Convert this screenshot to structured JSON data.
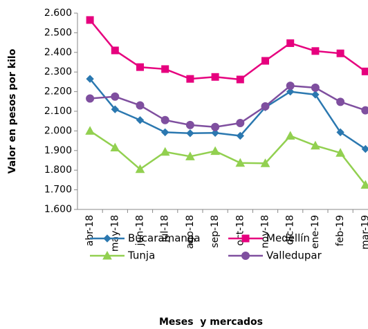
{
  "chart_data": {
    "type": "line",
    "x_label": "Meses  y mercados",
    "y_label": "Valor en pesos por kilo",
    "categories": [
      "abr-18",
      "may-18",
      "jun-18",
      "jul-18",
      "ago-18",
      "sep-18",
      "oct-18",
      "nov-18",
      "dic-18",
      "ene-19",
      "feb-19",
      "mar-19"
    ],
    "series": [
      {
        "name": "Bucaramanga",
        "color": "#2b78b0",
        "marker": "diamond",
        "values": [
          2265,
          2110,
          2055,
          1993,
          1988,
          1990,
          1975,
          2120,
          2200,
          2185,
          1993,
          1908
        ]
      },
      {
        "name": "Medellín",
        "color": "#e6007e",
        "marker": "square",
        "values": [
          2565,
          2410,
          2325,
          2315,
          2265,
          2275,
          2262,
          2357,
          2447,
          2407,
          2395,
          2303
        ]
      },
      {
        "name": "Tunja",
        "color": "#92d050",
        "marker": "triangle",
        "values": [
          2000,
          1915,
          1805,
          1893,
          1870,
          1897,
          1837,
          1835,
          1975,
          1925,
          1888,
          1725
        ]
      },
      {
        "name": "Valledupar",
        "color": "#7f4f9f",
        "marker": "circle",
        "values": [
          2165,
          2175,
          2130,
          2055,
          2030,
          2020,
          2040,
          2125,
          2230,
          2220,
          2148,
          2105
        ]
      }
    ],
    "ylim": [
      1600,
      2600
    ],
    "yticks": [
      {
        "value": 1600,
        "label": "1.600"
      },
      {
        "value": 1700,
        "label": "1.700"
      },
      {
        "value": 1800,
        "label": "1.800"
      },
      {
        "value": 1900,
        "label": "1.900"
      },
      {
        "value": 2000,
        "label": "2.000"
      },
      {
        "value": 2100,
        "label": "2.100"
      },
      {
        "value": 2200,
        "label": "2.200"
      },
      {
        "value": 2300,
        "label": "2.300"
      },
      {
        "value": 2400,
        "label": "2.400"
      },
      {
        "value": 2500,
        "label": "2.500"
      },
      {
        "value": 2600,
        "label": "2.600"
      }
    ],
    "grid": false
  }
}
